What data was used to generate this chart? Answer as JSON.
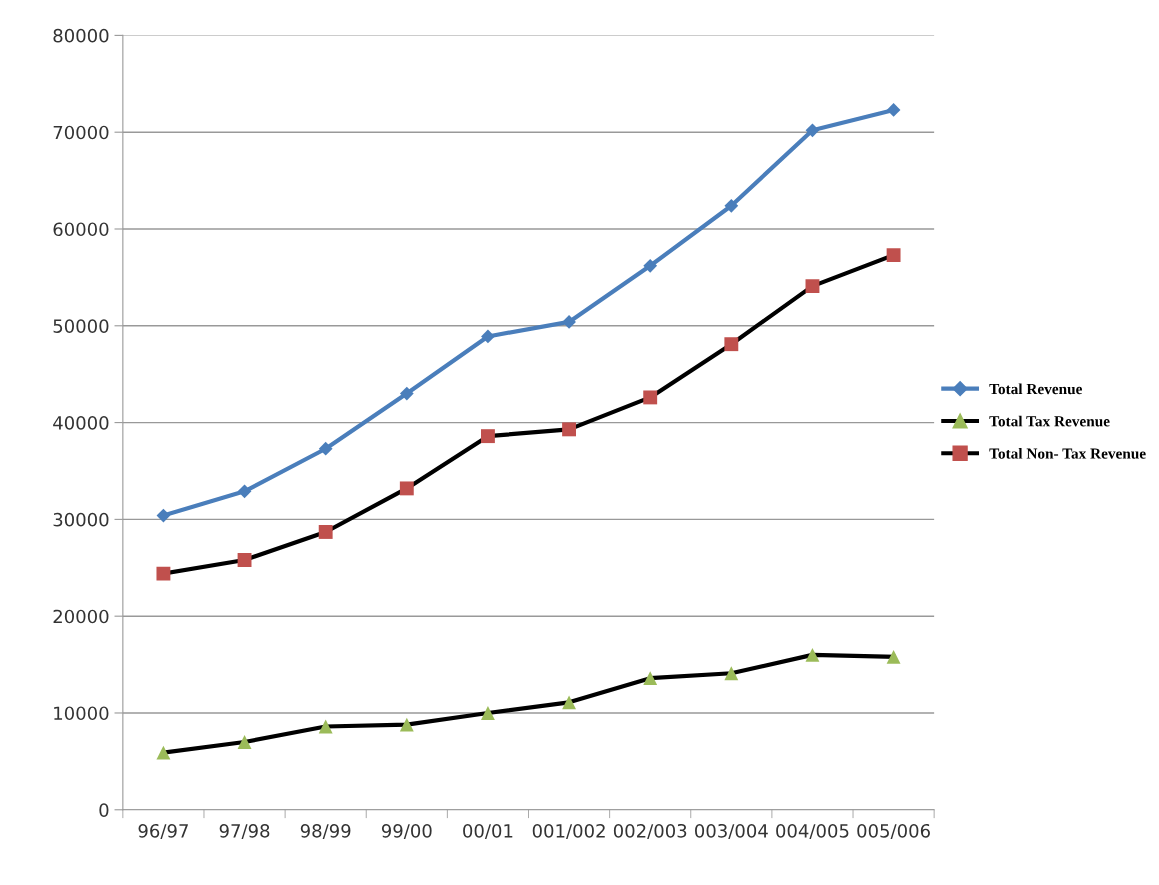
{
  "chart_data": {
    "type": "line",
    "categories": [
      "96/97",
      "97/98",
      "98/99",
      "99/00",
      "00/01",
      "001/002",
      "002/003",
      "003/004",
      "004/005",
      "005/006"
    ],
    "series": [
      {
        "name": "Total Revenue",
        "color": "#4a7ebb",
        "marker": "diamond",
        "values": [
          30400,
          32900,
          37300,
          43000,
          48900,
          50400,
          56200,
          62400,
          70200,
          72300
        ]
      },
      {
        "name": "Total Tax Revenue",
        "color": "#000000",
        "colors": [
          "#9bbb59",
          "#9bbb59",
          "#9bbb59",
          "#9bbb59",
          "#9bbb59",
          "#9bbb59",
          "#9bbb59",
          "#9bbb59",
          "#9bbb59",
          "#9bbb59"
        ],
        "marker": "triangle",
        "values": [
          5900,
          7000,
          8600,
          8800,
          10000,
          11100,
          13600,
          14100,
          16000,
          15800
        ]
      },
      {
        "name": "Total Non- Tax Revenue",
        "color": "#000000",
        "colors": [
          "#c0504d",
          "#c0504d",
          "#c0504d",
          "#c0504d",
          "#c0504d",
          "#c0504d",
          "#c0504d",
          "#c0504d",
          "#c0504d",
          "#c0504d"
        ],
        "marker": "square",
        "values": [
          24400,
          25800,
          28700,
          33200,
          38600,
          39300,
          42600,
          48100,
          54100,
          57300
        ]
      }
    ],
    "ylim": [
      0,
      80000
    ],
    "yticks": [
      0,
      10000,
      20000,
      30000,
      40000,
      50000,
      60000,
      70000,
      80000
    ],
    "grid": "y",
    "legend": "right",
    "line_style": "solid"
  }
}
